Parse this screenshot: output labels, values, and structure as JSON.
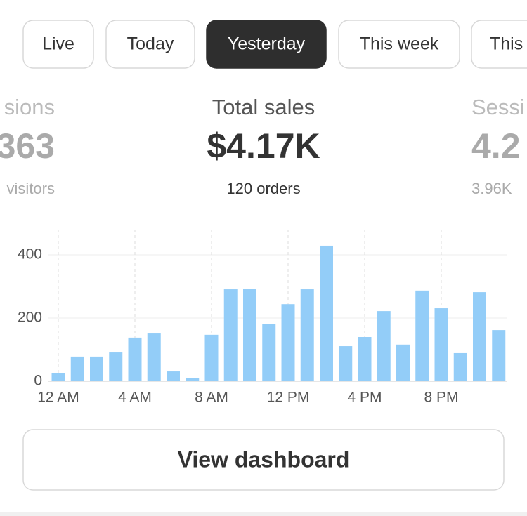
{
  "tabs": [
    {
      "label": "Live"
    },
    {
      "label": "Today"
    },
    {
      "label": "Yesterday",
      "active": true
    },
    {
      "label": "This week"
    },
    {
      "label": "This"
    }
  ],
  "stats": [
    {
      "title": "sions",
      "value": "363",
      "subtitle": "visitors"
    },
    {
      "title": "Total sales",
      "value": "$4.17K",
      "subtitle": "120 orders",
      "active": true
    },
    {
      "title": "Sessi",
      "value": "4.2",
      "subtitle": "3.96K"
    }
  ],
  "chart_data": {
    "type": "bar",
    "color": "#93cdf8",
    "categories": [
      "12 AM",
      null,
      null,
      null,
      "4 AM",
      null,
      null,
      null,
      "8 AM",
      null,
      null,
      null,
      "12 PM",
      null,
      null,
      null,
      "4 PM",
      null,
      null,
      null,
      "8 PM",
      null,
      null,
      null
    ],
    "values": [
      25,
      78,
      78,
      91,
      138,
      151,
      31,
      9,
      147,
      291,
      293,
      182,
      244,
      291,
      429,
      111,
      140,
      222,
      116,
      287,
      231,
      89,
      282,
      162
    ],
    "ylim": [
      0,
      480
    ],
    "yticks": [
      0,
      200,
      400
    ],
    "grid": true
  },
  "button": {
    "label": "View dashboard"
  }
}
